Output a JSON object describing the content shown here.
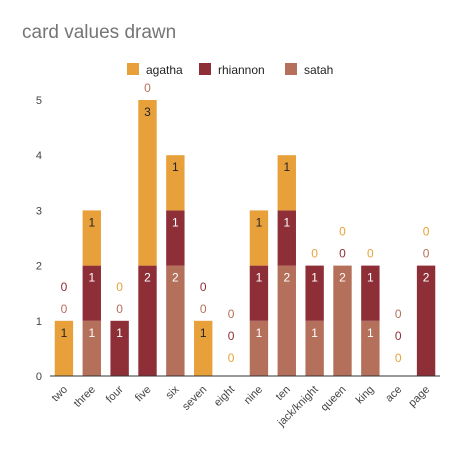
{
  "chart_data": {
    "type": "bar",
    "stacked": true,
    "title": "card values drawn",
    "xlabel": "",
    "ylabel": "",
    "categories": [
      "two",
      "three",
      "four",
      "five",
      "six",
      "seven",
      "eight",
      "nine",
      "ten",
      "jack/knight",
      "queen",
      "king",
      "ace",
      "page"
    ],
    "series": [
      {
        "name": "satah",
        "color": "#b5705b",
        "values": [
          0,
          1,
          0,
          0,
          2,
          0,
          0,
          1,
          2,
          1,
          2,
          1,
          0,
          0
        ]
      },
      {
        "name": "rhiannon",
        "color": "#8e2f37",
        "values": [
          0,
          1,
          1,
          2,
          1,
          0,
          0,
          1,
          1,
          1,
          0,
          1,
          0,
          2
        ]
      },
      {
        "name": "agatha",
        "color": "#e8a13a",
        "values": [
          1,
          1,
          0,
          3,
          1,
          1,
          0,
          1,
          1,
          0,
          0,
          0,
          0,
          0
        ]
      }
    ],
    "legend_order": [
      "agatha",
      "rhiannon",
      "satah"
    ],
    "legend_position": "top",
    "ylim": [
      0,
      5
    ],
    "yticks": [
      0,
      1,
      2,
      3,
      4,
      5
    ],
    "grid": false
  }
}
